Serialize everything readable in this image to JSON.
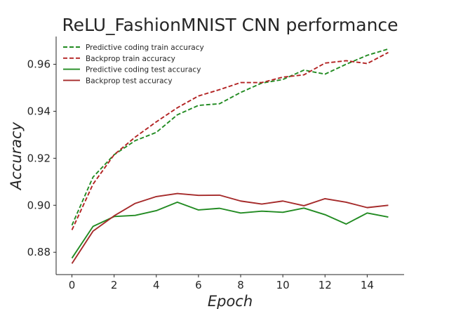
{
  "chart_data": {
    "type": "line",
    "title": "ReLU_FashionMNIST CNN performance",
    "xlabel": "Epoch",
    "ylabel": "Accuracy",
    "xlim": [
      -0.75,
      15.75
    ],
    "ylim": [
      0.8705,
      0.9718
    ],
    "xticks": [
      0,
      2,
      4,
      6,
      8,
      10,
      12,
      14
    ],
    "yticks": [
      0.88,
      0.9,
      0.92,
      0.94,
      0.96
    ],
    "ytick_labels": [
      "0.88",
      "0.90",
      "0.92",
      "0.94",
      "0.96"
    ],
    "x": [
      0,
      1,
      2,
      3,
      4,
      5,
      6,
      7,
      8,
      9,
      10,
      11,
      12,
      13,
      14,
      15
    ],
    "grid": false,
    "legend_position": "upper-left",
    "series": [
      {
        "name": "Predictive coding train accuracy",
        "color": "#228b22",
        "style": "dashed",
        "values": [
          0.8915,
          0.912,
          0.9215,
          0.9275,
          0.931,
          0.9385,
          0.9425,
          0.9432,
          0.948,
          0.952,
          0.9535,
          0.9575,
          0.9558,
          0.96,
          0.9638,
          0.9665
        ]
      },
      {
        "name": "Backprop train accuracy",
        "color": "#b22222",
        "style": "dashed",
        "values": [
          0.8895,
          0.909,
          0.9215,
          0.929,
          0.9355,
          0.9415,
          0.9465,
          0.9492,
          0.9522,
          0.9522,
          0.9545,
          0.9555,
          0.9605,
          0.9615,
          0.9603,
          0.965
        ]
      },
      {
        "name": "Predictive coding test accuracy",
        "color": "#228b22",
        "style": "solid",
        "values": [
          0.8775,
          0.891,
          0.8952,
          0.8957,
          0.8977,
          0.9013,
          0.898,
          0.8987,
          0.8967,
          0.8975,
          0.897,
          0.8988,
          0.896,
          0.892,
          0.8967,
          0.895
        ]
      },
      {
        "name": "Backprop test accuracy",
        "color": "#a52a2a",
        "style": "solid",
        "values": [
          0.8752,
          0.889,
          0.8955,
          0.9008,
          0.9037,
          0.905,
          0.9042,
          0.9043,
          0.9018,
          0.9005,
          0.9018,
          0.8998,
          0.9028,
          0.9013,
          0.899,
          0.9
        ]
      }
    ]
  }
}
